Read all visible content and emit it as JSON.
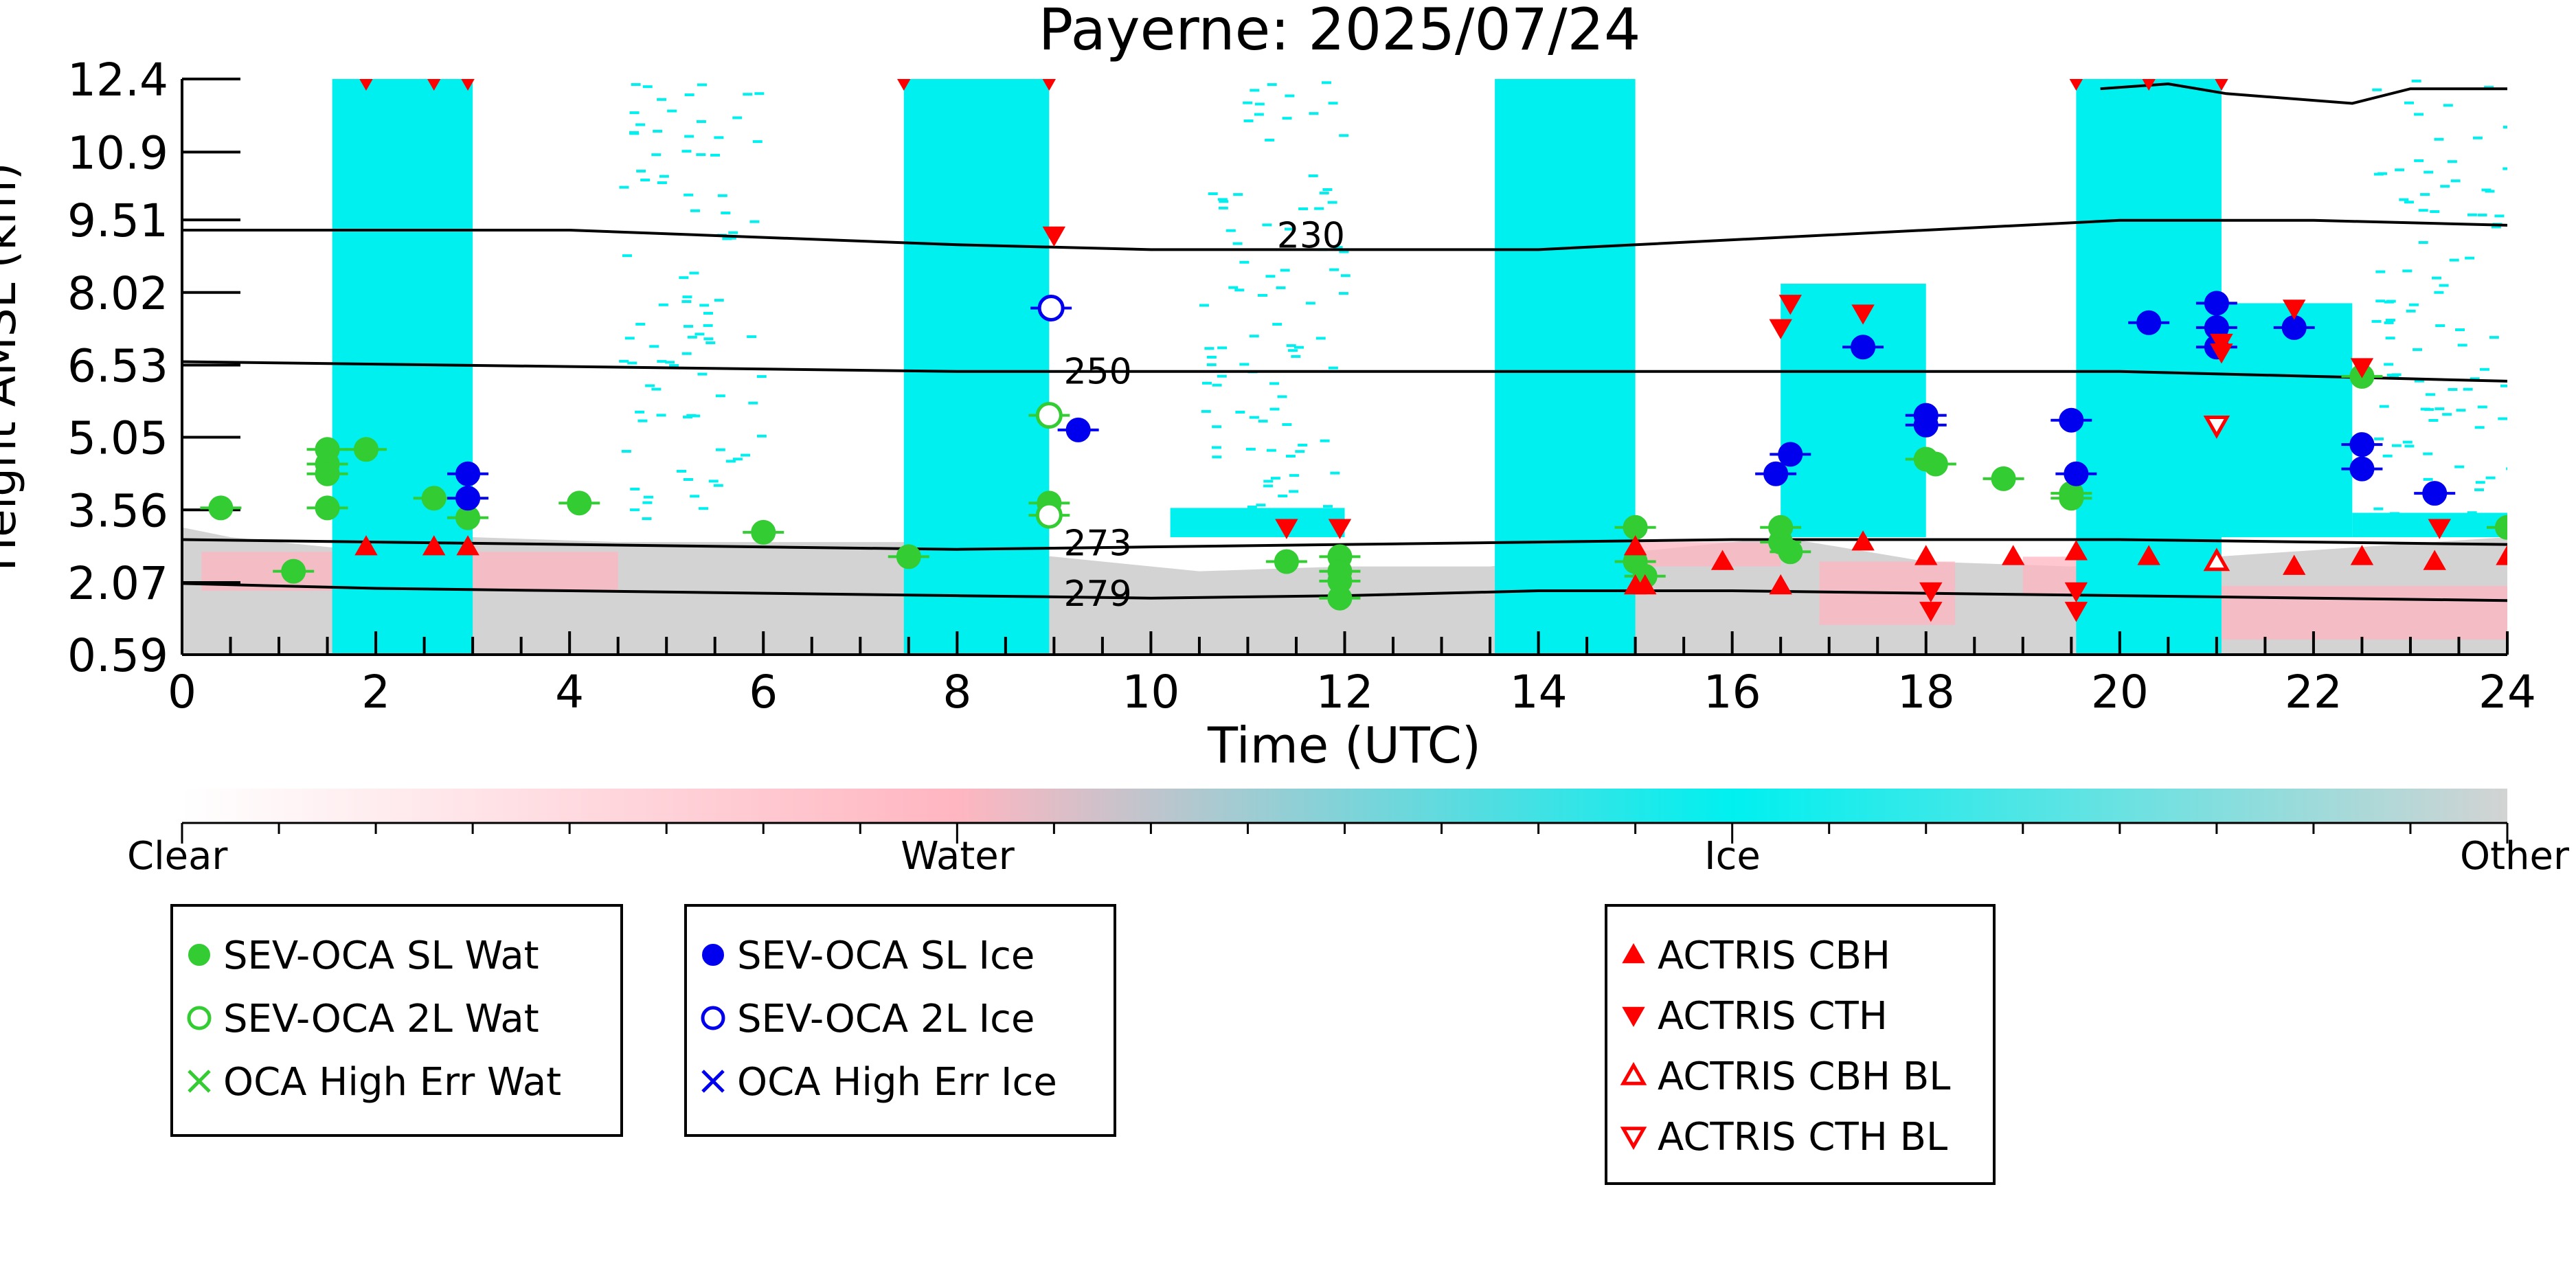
{
  "chart_data": {
    "type": "scatter",
    "title": "Payerne: 2025/07/24",
    "xlabel": "Time (UTC)",
    "ylabel": "Height AMSL (km)",
    "xlim": [
      0,
      24
    ],
    "ylim": [
      0.59,
      12.4
    ],
    "x_ticks": [
      "0",
      "2",
      "4",
      "6",
      "8",
      "10",
      "12",
      "14",
      "16",
      "18",
      "20",
      "22",
      "24"
    ],
    "y_ticks": [
      "0.59",
      "2.07",
      "3.56",
      "5.05",
      "6.53",
      "8.02",
      "9.51",
      "10.9",
      "12.4"
    ],
    "colorbar": {
      "labels": [
        "Clear",
        "Water",
        "Ice",
        "Other"
      ],
      "colors": [
        "#ffffff",
        "#ffb6c1",
        "#00f0f0",
        "#d3d3d3"
      ]
    },
    "background": {
      "ice_columns": [
        [
          1.55,
          3.0
        ],
        [
          7.45,
          8.95
        ],
        [
          13.55,
          15.0
        ],
        [
          19.55,
          21.05
        ]
      ],
      "ice_regions": [
        [
          16.5,
          18.0,
          3.0,
          8.2
        ],
        [
          20.9,
          22.4,
          3.0,
          7.8
        ],
        [
          10.2,
          12.0,
          3.0,
          3.6
        ],
        [
          22.4,
          24.0,
          3.0,
          3.5
        ]
      ],
      "other_layer_top": [
        [
          0,
          3.2
        ],
        [
          0.5,
          3.0
        ],
        [
          2,
          2.7
        ],
        [
          3,
          3.0
        ],
        [
          4.5,
          2.9
        ],
        [
          6,
          2.9
        ],
        [
          7.5,
          2.9
        ],
        [
          9,
          2.6
        ],
        [
          10.5,
          2.3
        ],
        [
          12,
          2.4
        ],
        [
          13.5,
          2.4
        ],
        [
          15,
          2.7
        ],
        [
          16.5,
          3.0
        ],
        [
          18,
          2.5
        ],
        [
          19.5,
          2.4
        ],
        [
          21,
          2.6
        ],
        [
          22.5,
          2.8
        ],
        [
          24,
          3.0
        ]
      ],
      "water_patches": [
        [
          0.2,
          4.5,
          1.9,
          2.7
        ],
        [
          15.0,
          16.5,
          2.4,
          2.9
        ],
        [
          16.9,
          18.3,
          1.2,
          2.5
        ],
        [
          19.0,
          20.5,
          1.8,
          2.6
        ],
        [
          20.7,
          24.0,
          0.9,
          2.0
        ]
      ]
    },
    "contours": [
      {
        "label": "230",
        "label_x": 11.3,
        "x": [
          0,
          4,
          8,
          10,
          12,
          14,
          16,
          18,
          20,
          22,
          24
        ],
        "y": [
          9.3,
          9.3,
          9.0,
          8.9,
          8.9,
          8.9,
          9.1,
          9.3,
          9.5,
          9.5,
          9.4
        ]
      },
      {
        "label": "250",
        "label_x": 9.1,
        "x": [
          0,
          4,
          8,
          10,
          12,
          14,
          16,
          18,
          20,
          22,
          24
        ],
        "y": [
          6.6,
          6.5,
          6.4,
          6.4,
          6.4,
          6.4,
          6.4,
          6.4,
          6.4,
          6.3,
          6.2
        ]
      },
      {
        "label": "273",
        "label_x": 9.1,
        "x": [
          0,
          4,
          8,
          10,
          12,
          14,
          16,
          18,
          20,
          22,
          24
        ],
        "y": [
          2.95,
          2.85,
          2.75,
          2.8,
          2.85,
          2.9,
          2.95,
          2.95,
          2.95,
          2.9,
          2.85
        ]
      },
      {
        "label": "279",
        "label_x": 9.1,
        "x": [
          0,
          2,
          4,
          6,
          8,
          10,
          12,
          14,
          16,
          18,
          20,
          22,
          24
        ],
        "y": [
          2.05,
          1.95,
          1.9,
          1.85,
          1.8,
          1.75,
          1.8,
          1.9,
          1.9,
          1.85,
          1.8,
          1.75,
          1.7
        ]
      },
      {
        "label": "",
        "label_x": null,
        "x": [
          19.8,
          20.5,
          21.1,
          22.4,
          23.0,
          24.0
        ],
        "y": [
          12.2,
          12.3,
          12.1,
          11.9,
          12.2,
          12.2
        ]
      }
    ],
    "series": [
      {
        "name": "SEV-OCA SL Wat",
        "marker": "filled-circle",
        "color": "#33cc33",
        "x": [
          0.4,
          1.15,
          1.5,
          1.5,
          1.5,
          1.5,
          1.9,
          2.6,
          2.95,
          4.1,
          6.0,
          7.5,
          8.95,
          11.4,
          11.95,
          11.95,
          11.95,
          11.95,
          15.0,
          15.0,
          15.1,
          16.5,
          16.5,
          16.6,
          18.0,
          18.1,
          18.8,
          19.5,
          19.5,
          22.5,
          24.0
        ],
        "y": [
          3.6,
          2.3,
          4.8,
          4.5,
          4.3,
          3.6,
          4.8,
          3.8,
          3.4,
          3.7,
          3.1,
          2.6,
          3.7,
          2.5,
          2.6,
          2.1,
          1.75,
          2.3,
          3.2,
          2.5,
          2.2,
          2.9,
          3.2,
          2.7,
          4.6,
          4.5,
          4.2,
          3.9,
          3.8,
          6.3,
          3.2
        ]
      },
      {
        "name": "SEV-OCA 2L Wat",
        "marker": "open-circle",
        "color": "#33cc33",
        "x": [
          8.95,
          8.95
        ],
        "y": [
          5.5,
          3.45
        ]
      },
      {
        "name": "OCA High Err Wat",
        "marker": "x",
        "color": "#33cc33",
        "x": [],
        "y": []
      },
      {
        "name": "SEV-OCA SL Ice",
        "marker": "filled-circle",
        "color": "#0000ee",
        "x": [
          2.95,
          2.95,
          9.25,
          16.45,
          16.6,
          17.35,
          18.0,
          18.0,
          19.5,
          19.55,
          20.3,
          21.0,
          21.0,
          21.0,
          21.8,
          22.5,
          22.5,
          23.25
        ],
        "y": [
          4.3,
          3.8,
          5.2,
          4.3,
          4.7,
          6.9,
          5.5,
          5.3,
          5.4,
          4.3,
          7.4,
          7.8,
          7.3,
          6.9,
          7.3,
          4.9,
          4.4,
          3.9
        ]
      },
      {
        "name": "SEV-OCA 2L Ice",
        "marker": "open-circle",
        "color": "#0000ee",
        "x": [
          8.97
        ],
        "y": [
          7.7
        ]
      },
      {
        "name": "OCA High Err Ice",
        "marker": "x",
        "color": "#0000ee",
        "x": [],
        "y": []
      },
      {
        "name": "ACTRIS CBH",
        "marker": "triangle-up-filled",
        "color": "#ff0000",
        "x": [
          1.9,
          2.6,
          2.95,
          15.0,
          15.0,
          15.1,
          15.9,
          16.5,
          17.35,
          18.0,
          18.9,
          19.55,
          20.3,
          21.0,
          21.8,
          22.5,
          23.25,
          24.0
        ],
        "y": [
          2.8,
          2.8,
          2.8,
          2.0,
          2.8,
          2.0,
          2.5,
          2.0,
          2.9,
          2.6,
          2.6,
          2.7,
          2.6,
          2.5,
          2.4,
          2.6,
          2.5,
          2.6
        ]
      },
      {
        "name": "ACTRIS CTH",
        "marker": "triangle-down-filled",
        "color": "#ff0000",
        "x": [
          1.9,
          2.6,
          2.95,
          7.45,
          8.95,
          9.0,
          11.4,
          11.95,
          16.5,
          16.6,
          17.35,
          18.05,
          18.05,
          19.55,
          19.55,
          19.55,
          20.3,
          21.05,
          21.05,
          21.05,
          21.8,
          22.5,
          23.3
        ],
        "y": [
          12.4,
          12.4,
          12.4,
          12.4,
          12.4,
          9.2,
          3.2,
          3.2,
          7.3,
          7.8,
          7.6,
          1.9,
          1.5,
          12.4,
          1.9,
          1.5,
          12.4,
          12.4,
          6.8,
          7.0,
          7.7,
          6.5,
          3.2
        ]
      },
      {
        "name": "ACTRIS CBH BL",
        "marker": "triangle-up-open",
        "color": "#ff0000",
        "x": [
          21.0
        ],
        "y": [
          2.5
        ]
      },
      {
        "name": "ACTRIS CTH BL",
        "marker": "triangle-down-open",
        "color": "#ff0000",
        "x": [
          21.0
        ],
        "y": [
          5.3
        ]
      }
    ]
  },
  "legends": [
    {
      "items": [
        {
          "label": "SEV-OCA SL Wat",
          "marker": "filled-circle",
          "color": "#33cc33"
        },
        {
          "label": "SEV-OCA 2L Wat",
          "marker": "open-circle",
          "color": "#33cc33"
        },
        {
          "label": "OCA High Err Wat",
          "marker": "x",
          "color": "#33cc33"
        }
      ]
    },
    {
      "items": [
        {
          "label": "SEV-OCA SL Ice",
          "marker": "filled-circle",
          "color": "#0000ee"
        },
        {
          "label": "SEV-OCA 2L Ice",
          "marker": "open-circle",
          "color": "#0000ee"
        },
        {
          "label": "OCA High Err Ice",
          "marker": "x",
          "color": "#0000ee"
        }
      ]
    },
    {
      "items": [
        {
          "label": "ACTRIS CBH",
          "marker": "triangle-up-filled",
          "color": "#ff0000"
        },
        {
          "label": "ACTRIS CTH",
          "marker": "triangle-down-filled",
          "color": "#ff0000"
        },
        {
          "label": "ACTRIS CBH BL",
          "marker": "triangle-up-open",
          "color": "#ff0000"
        },
        {
          "label": "ACTRIS CTH BL",
          "marker": "triangle-down-open",
          "color": "#ff0000"
        }
      ]
    }
  ]
}
